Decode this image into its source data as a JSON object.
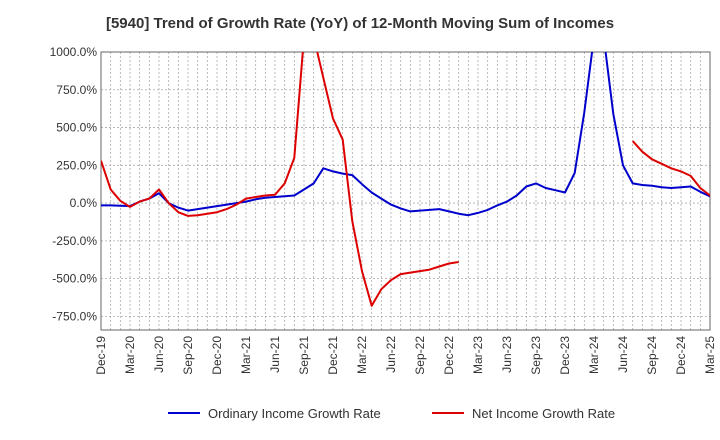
{
  "chart_data": {
    "type": "line",
    "title": "[5940]  Trend of Growth Rate (YoY) of 12-Month Moving Sum of Incomes",
    "xlabel": "",
    "ylabel": "",
    "ylim": [
      -840,
      1000
    ],
    "y_ticks": [
      1000,
      750,
      500,
      250,
      0,
      -250,
      -500,
      -750
    ],
    "y_tick_labels": [
      "1000.0%",
      "750.0%",
      "500.0%",
      "250.0%",
      "0.0%",
      "-250.0%",
      "-500.0%",
      "-750.0%"
    ],
    "x_tick_labels": [
      "Dec-19",
      "Mar-20",
      "Jun-20",
      "Sep-20",
      "Dec-20",
      "Mar-21",
      "Jun-21",
      "Sep-21",
      "Dec-21",
      "Mar-22",
      "Jun-22",
      "Sep-22",
      "Dec-22",
      "Mar-23",
      "Jun-23",
      "Sep-23",
      "Dec-23",
      "Mar-24",
      "Jun-24",
      "Sep-24",
      "Dec-24",
      "Mar-25"
    ],
    "x_months_start": "Dec-19",
    "x_months_end": "Mar-25",
    "grid": true,
    "legend_position": "bottom",
    "series": [
      {
        "name": "Ordinary Income Growth Rate",
        "color": "#0000cc",
        "values": [
          -15,
          -15,
          -18,
          -20,
          10,
          30,
          65,
          0,
          -30,
          -50,
          -40,
          -30,
          -20,
          -10,
          0,
          10,
          25,
          35,
          40,
          45,
          50,
          90,
          130,
          230,
          210,
          195,
          185,
          125,
          70,
          30,
          -10,
          -35,
          -55,
          -50,
          -45,
          -40,
          -55,
          -70,
          -80,
          -65,
          -45,
          -15,
          10,
          50,
          110,
          130,
          100,
          85,
          70,
          200,
          600,
          1100,
          1100,
          590,
          250,
          130,
          120,
          115,
          105,
          100,
          105,
          110,
          75,
          45,
          25,
          null,
          null
        ]
      },
      {
        "name": "Net Income Growth Rate",
        "color": "#dd0000",
        "values": [
          280,
          90,
          15,
          -25,
          10,
          30,
          90,
          0,
          -60,
          -85,
          -80,
          -70,
          -60,
          -40,
          -10,
          30,
          40,
          50,
          55,
          130,
          300,
          1100,
          1100,
          830,
          560,
          420,
          -120,
          -450,
          -680,
          -570,
          -510,
          -470,
          -460,
          -450,
          -440,
          -420,
          -400,
          -390,
          null,
          null,
          null,
          null,
          null,
          null,
          null,
          null,
          null,
          null,
          null,
          null,
          null,
          null,
          null,
          null,
          null,
          410,
          340,
          290,
          260,
          230,
          210,
          180,
          100,
          50,
          15,
          null,
          null
        ]
      }
    ]
  }
}
